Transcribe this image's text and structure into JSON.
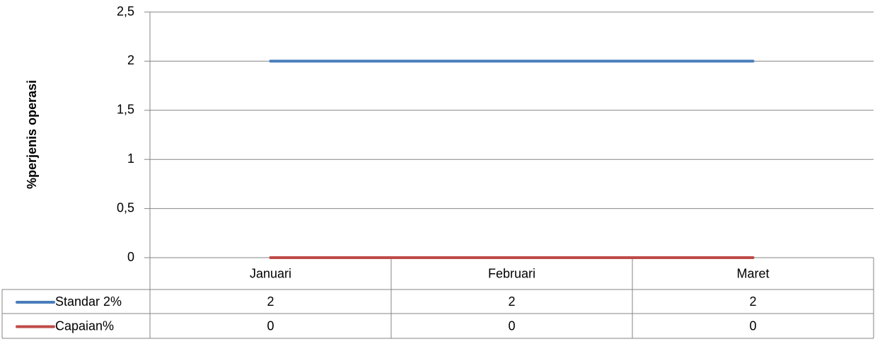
{
  "chart_data": {
    "type": "line",
    "y_axis_label": "%perjenis operasi",
    "categories": [
      "Januari",
      "Februari",
      "Maret"
    ],
    "series": [
      {
        "name": "Standar 2%",
        "color": "#4a7ebb",
        "values": [
          2,
          2,
          2
        ]
      },
      {
        "name": "Capaian%",
        "color": "#be4b48",
        "values": [
          0,
          0,
          0
        ]
      }
    ],
    "ylim": [
      0,
      2.5
    ],
    "yticks": [
      0,
      {
        "value": 0.5,
        "label": "0,5"
      },
      1,
      {
        "value": 1.5,
        "label": "1,5"
      },
      2,
      {
        "value": 2.5,
        "label": "2,5"
      }
    ],
    "grid": true,
    "data_table": true
  }
}
